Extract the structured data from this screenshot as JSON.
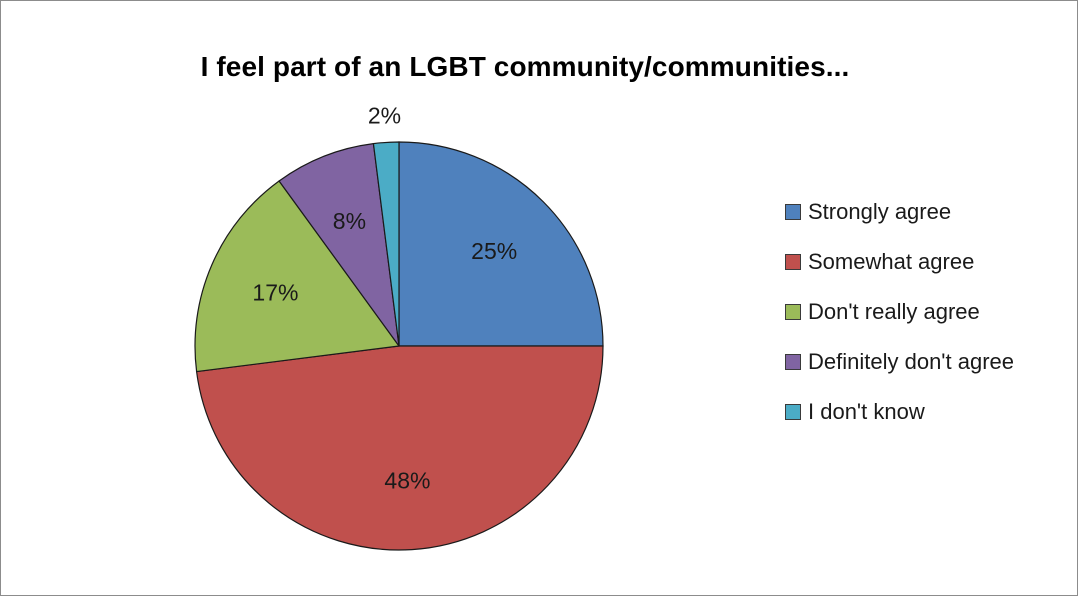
{
  "chart_data": {
    "type": "pie",
    "title": "I feel part of an LGBT community/communities...",
    "categories": [
      "Strongly agree",
      "Somewhat agree",
      "Don't really agree",
      "Definitely don't agree",
      "I don't know"
    ],
    "values": [
      25,
      48,
      17,
      8,
      2
    ],
    "value_labels": [
      "25%",
      "48%",
      "17%",
      "8%",
      "2%"
    ],
    "colors": [
      "#4F81BD",
      "#C0504D",
      "#9BBB59",
      "#8064A2",
      "#4BACC6"
    ],
    "legend_position": "right",
    "start": "12 o'clock",
    "direction": "clockwise"
  }
}
